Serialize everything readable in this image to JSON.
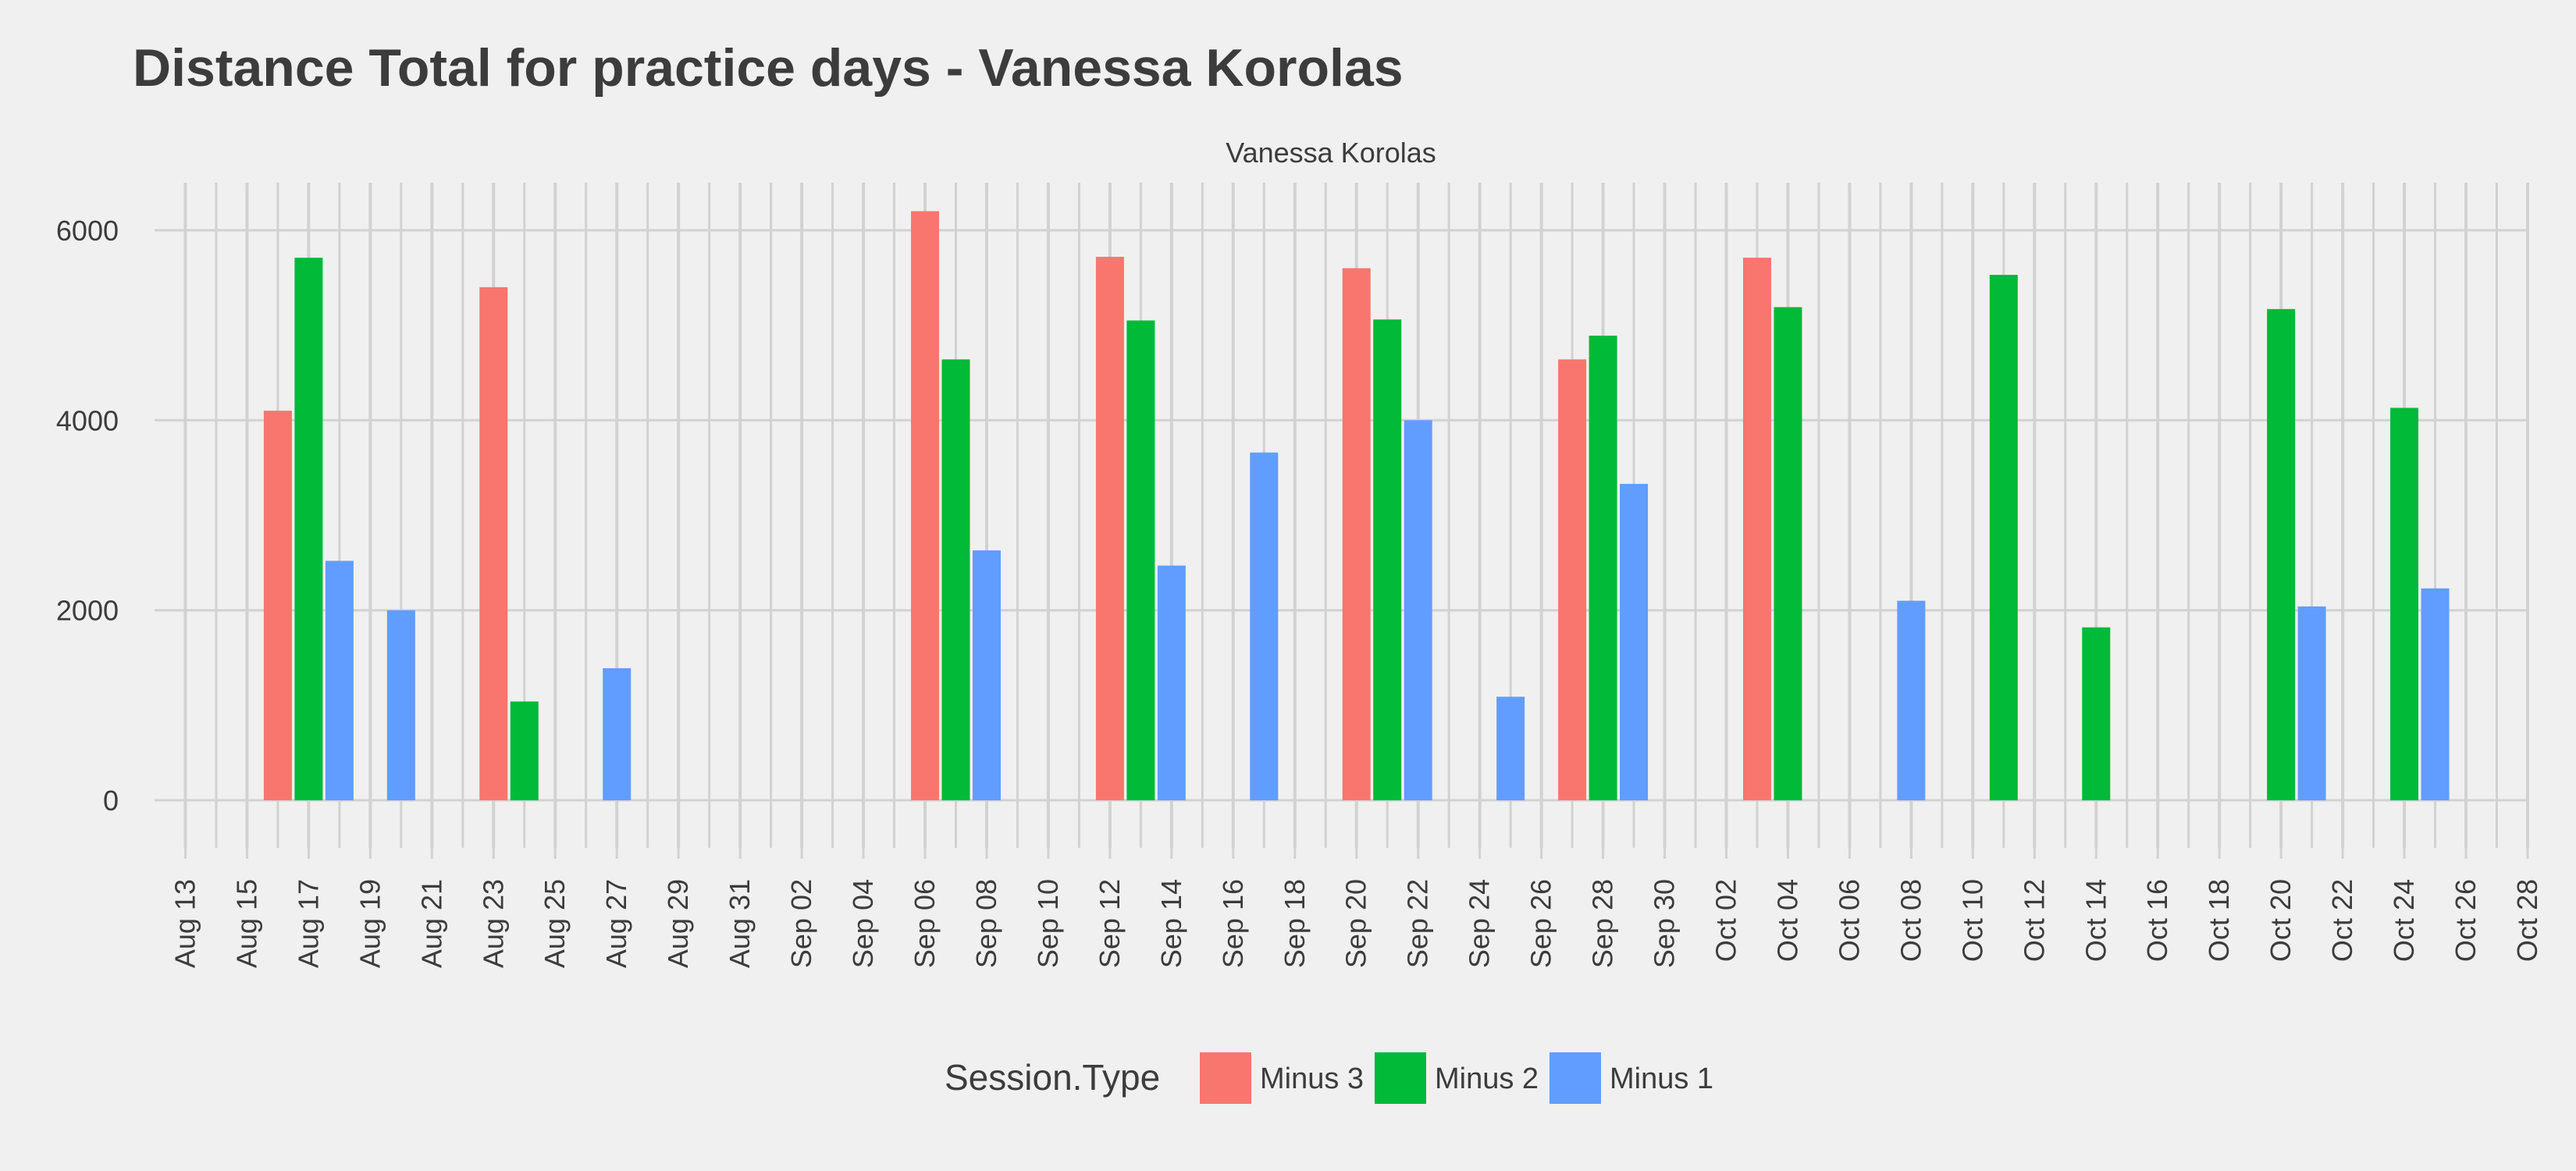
{
  "chart_data": {
    "type": "bar",
    "title": "Distance Total for practice days -  Vanessa Korolas",
    "panel_label": "Vanessa Korolas",
    "xlabel": "",
    "ylabel": "",
    "ylim": [
      -500,
      6500
    ],
    "y_ticks": [
      0,
      2000,
      4000,
      6000
    ],
    "x_range": [
      "2018-08-12",
      "2018-10-28"
    ],
    "x_tick_labels": [
      "Aug 13",
      "Aug 15",
      "Aug 17",
      "Aug 19",
      "Aug 21",
      "Aug 23",
      "Aug 25",
      "Aug 27",
      "Aug 29",
      "Aug 31",
      "Sep 02",
      "Sep 04",
      "Sep 06",
      "Sep 08",
      "Sep 10",
      "Sep 12",
      "Sep 14",
      "Sep 16",
      "Sep 18",
      "Sep 20",
      "Sep 22",
      "Sep 24",
      "Sep 26",
      "Sep 28",
      "Sep 30",
      "Oct 02",
      "Oct 04",
      "Oct 06",
      "Oct 08",
      "Oct 10",
      "Oct 12",
      "Oct 14",
      "Oct 16",
      "Oct 18",
      "Oct 20",
      "Oct 22",
      "Oct 24",
      "Oct 26",
      "Oct 28"
    ],
    "grid": true,
    "legend": {
      "title": "Session.Type",
      "position": "bottom"
    },
    "series": [
      {
        "name": "Minus 3",
        "color": "#f8766d",
        "points": [
          {
            "date": "2018-08-16",
            "value": 4100
          },
          {
            "date": "2018-08-23",
            "value": 5400
          },
          {
            "date": "2018-09-06",
            "value": 6200
          },
          {
            "date": "2018-09-12",
            "value": 5720
          },
          {
            "date": "2018-09-20",
            "value": 5600
          },
          {
            "date": "2018-09-27",
            "value": 4640
          },
          {
            "date": "2018-10-03",
            "value": 5710
          }
        ]
      },
      {
        "name": "Minus 2",
        "color": "#00ba38",
        "points": [
          {
            "date": "2018-08-17",
            "value": 5710
          },
          {
            "date": "2018-08-24",
            "value": 1040
          },
          {
            "date": "2018-09-07",
            "value": 4640
          },
          {
            "date": "2018-09-13",
            "value": 5050
          },
          {
            "date": "2018-09-21",
            "value": 5060
          },
          {
            "date": "2018-09-28",
            "value": 4890
          },
          {
            "date": "2018-10-04",
            "value": 5190
          },
          {
            "date": "2018-10-11",
            "value": 5530
          },
          {
            "date": "2018-10-14",
            "value": 1820
          },
          {
            "date": "2018-10-20",
            "value": 5170
          },
          {
            "date": "2018-10-24",
            "value": 4130
          }
        ]
      },
      {
        "name": "Minus 1",
        "color": "#619cff",
        "points": [
          {
            "date": "2018-08-18",
            "value": 2520
          },
          {
            "date": "2018-08-20",
            "value": 2000
          },
          {
            "date": "2018-08-27",
            "value": 1390
          },
          {
            "date": "2018-09-08",
            "value": 2630
          },
          {
            "date": "2018-09-14",
            "value": 2470
          },
          {
            "date": "2018-09-17",
            "value": 3660
          },
          {
            "date": "2018-09-22",
            "value": 4000
          },
          {
            "date": "2018-09-25",
            "value": 1090
          },
          {
            "date": "2018-09-29",
            "value": 3330
          },
          {
            "date": "2018-10-08",
            "value": 2100
          },
          {
            "date": "2018-10-21",
            "value": 2040
          },
          {
            "date": "2018-10-25",
            "value": 2230
          }
        ]
      }
    ]
  }
}
